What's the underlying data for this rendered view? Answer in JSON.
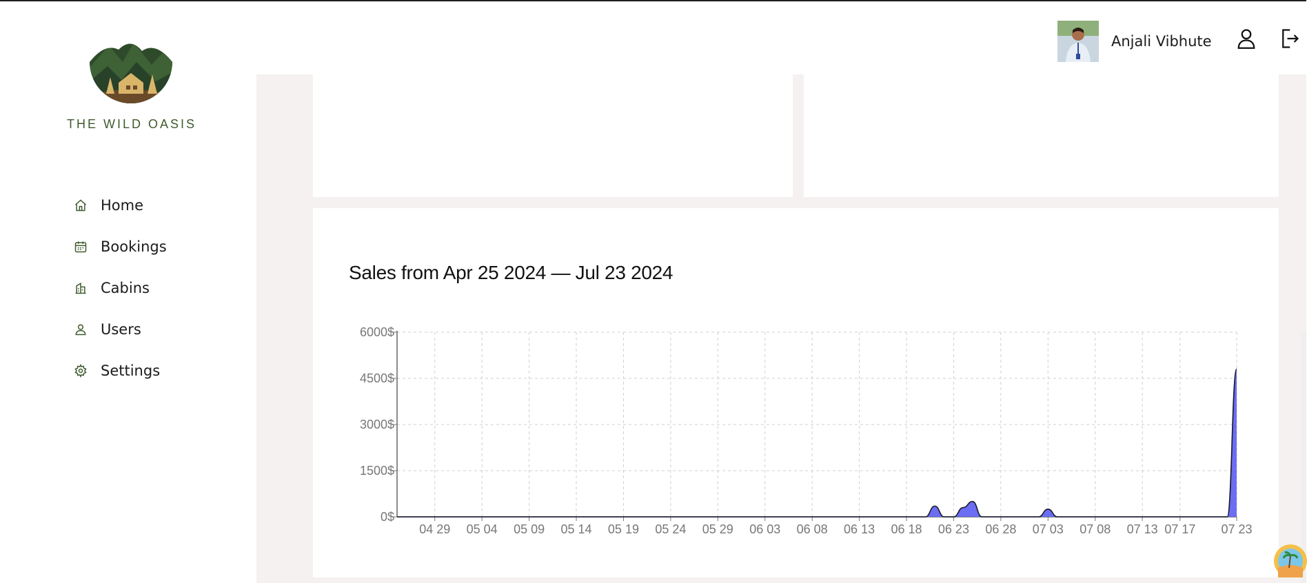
{
  "brand": {
    "name": "THE WILD OASIS",
    "logo_icon": "mountain-cabin-logo"
  },
  "nav": {
    "items": [
      {
        "key": "home",
        "label": "Home",
        "icon": "home-icon"
      },
      {
        "key": "bookings",
        "label": "Bookings",
        "icon": "calendar-icon"
      },
      {
        "key": "cabins",
        "label": "Cabins",
        "icon": "cabins-icon"
      },
      {
        "key": "users",
        "label": "Users",
        "icon": "user-icon"
      },
      {
        "key": "settings",
        "label": "Settings",
        "icon": "gear-icon"
      }
    ]
  },
  "header": {
    "user_name": "Anjali Vibhute",
    "account_icon": "user-outline-icon",
    "logout_icon": "logout-icon"
  },
  "chart_title": "Sales from Apr 25 2024 — Jul 23 2024",
  "colors": {
    "accent": "#4f46e5",
    "area_fill": "#6366f1",
    "brand_green": "#3f5a2e",
    "panel_bg": "#f5f1f0"
  },
  "chart_data": {
    "type": "area",
    "title": "Sales from Apr 25 2024 — Jul 23 2024",
    "xlabel": "",
    "ylabel": "",
    "y_unit_suffix": "$",
    "ylim": [
      0,
      6000
    ],
    "y_ticks": [
      "0$",
      "1500$",
      "3000$",
      "4500$",
      "6000$"
    ],
    "x_ticks": [
      "04 29",
      "05 04",
      "05 09",
      "05 14",
      "05 19",
      "05 24",
      "05 29",
      "06 03",
      "06 08",
      "06 13",
      "06 18",
      "06 23",
      "06 28",
      "07 03",
      "07 08",
      "07 13",
      "07 17",
      "07 23"
    ],
    "grid": true,
    "series": [
      {
        "values": [
          [
            "2024-04-25",
            0
          ],
          [
            "2024-06-20",
            0
          ],
          [
            "2024-06-21",
            350
          ],
          [
            "2024-06-22",
            0
          ],
          [
            "2024-06-23",
            0
          ],
          [
            "2024-06-24",
            300
          ],
          [
            "2024-06-25",
            500
          ],
          [
            "2024-06-26",
            0
          ],
          [
            "2024-07-02",
            0
          ],
          [
            "2024-07-03",
            250
          ],
          [
            "2024-07-04",
            0
          ],
          [
            "2024-07-22",
            0
          ],
          [
            "2024-07-23",
            4800
          ]
        ]
      }
    ]
  }
}
